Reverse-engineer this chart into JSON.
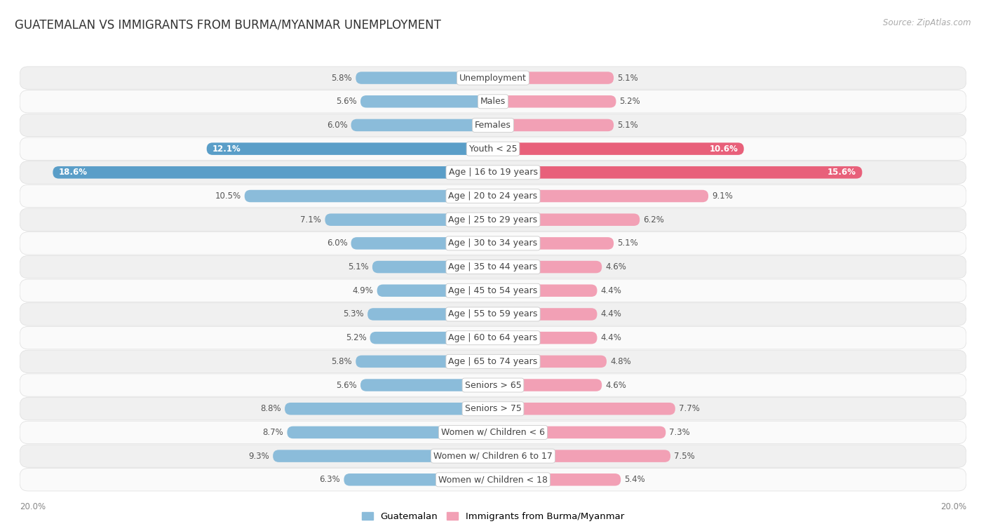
{
  "title": "GUATEMALAN VS IMMIGRANTS FROM BURMA/MYANMAR UNEMPLOYMENT",
  "source": "Source: ZipAtlas.com",
  "categories": [
    "Unemployment",
    "Males",
    "Females",
    "Youth < 25",
    "Age | 16 to 19 years",
    "Age | 20 to 24 years",
    "Age | 25 to 29 years",
    "Age | 30 to 34 years",
    "Age | 35 to 44 years",
    "Age | 45 to 54 years",
    "Age | 55 to 59 years",
    "Age | 60 to 64 years",
    "Age | 65 to 74 years",
    "Seniors > 65",
    "Seniors > 75",
    "Women w/ Children < 6",
    "Women w/ Children 6 to 17",
    "Women w/ Children < 18"
  ],
  "guatemalan": [
    5.8,
    5.6,
    6.0,
    12.1,
    18.6,
    10.5,
    7.1,
    6.0,
    5.1,
    4.9,
    5.3,
    5.2,
    5.8,
    5.6,
    8.8,
    8.7,
    9.3,
    6.3
  ],
  "burma": [
    5.1,
    5.2,
    5.1,
    10.6,
    15.6,
    9.1,
    6.2,
    5.1,
    4.6,
    4.4,
    4.4,
    4.4,
    4.8,
    4.6,
    7.7,
    7.3,
    7.5,
    5.4
  ],
  "guatemalan_color": "#8bbcda",
  "burma_color": "#f2a0b5",
  "guatemalan_highlight_color": "#5a9ec8",
  "burma_highlight_color": "#e8607a",
  "bg_color": "#ffffff",
  "row_even_color": "#f0f0f0",
  "row_odd_color": "#fafafa",
  "axis_max": 20.0,
  "label_fontsize": 9.0,
  "value_fontsize": 8.5,
  "title_fontsize": 12,
  "legend_labels": [
    "Guatemalan",
    "Immigrants from Burma/Myanmar"
  ],
  "highlight_rows": [
    3,
    4
  ]
}
